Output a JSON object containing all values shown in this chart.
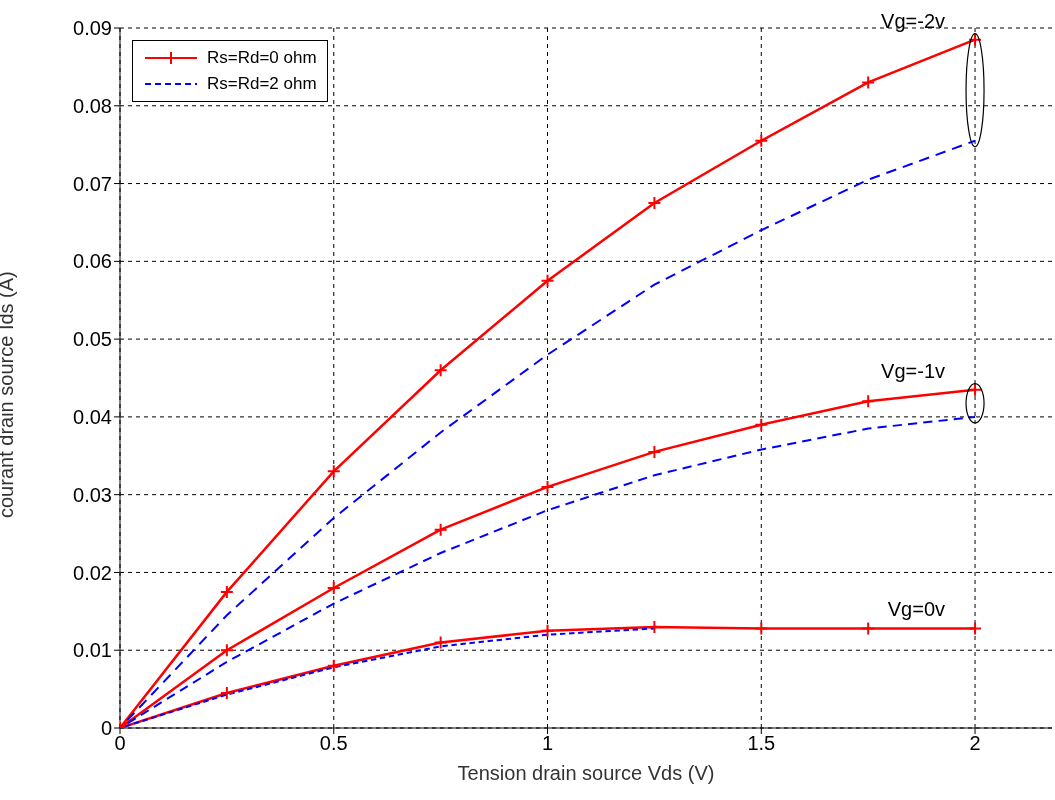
{
  "chart_data": {
    "type": "line",
    "xlabel": "Tension drain source Vds (V)",
    "ylabel": "courant drain source Ids (A)",
    "xlim": [
      0,
      2.18
    ],
    "xticks": [
      0,
      0.5,
      1,
      1.5,
      2
    ],
    "ylim": [
      0,
      0.09
    ],
    "yticks": [
      0,
      0.01,
      0.02,
      0.03,
      0.04,
      0.05,
      0.06,
      0.07,
      0.08,
      0.09
    ],
    "grid": true,
    "legend": "top left",
    "series": [
      {
        "name": "Rs=Rd=0 ohm",
        "color": "#ff0000",
        "marker": "cross",
        "line_style": "solid",
        "x": [
          0,
          0.25,
          0.5,
          0.75,
          1,
          1.25,
          1.5,
          1.75,
          2
        ],
        "values": [
          0,
          0.0175,
          0.033,
          0.046,
          0.0575,
          0.0675,
          0.0755,
          0.083,
          0.0885
        ]
      },
      {
        "name": "Rs=Rd=2 ohm",
        "color": "#0000ff",
        "marker": "none",
        "line_style": "dashed",
        "x": [
          0,
          0.25,
          0.5,
          0.75,
          1,
          1.25,
          1.5,
          1.75,
          2
        ],
        "values": [
          0,
          0.0145,
          0.027,
          0.038,
          0.048,
          0.057,
          0.064,
          0.0705,
          0.0755
        ]
      },
      {
        "color": "#ff0000",
        "marker": "cross",
        "line_style": "solid",
        "x": [
          0,
          0.25,
          0.5,
          0.75,
          1,
          1.25,
          1.5,
          1.75,
          2
        ],
        "values": [
          0,
          0.01,
          0.018,
          0.0255,
          0.031,
          0.0355,
          0.039,
          0.042,
          0.0435
        ]
      },
      {
        "color": "#0000ff",
        "marker": "none",
        "line_style": "dashed",
        "x": [
          0,
          0.25,
          0.5,
          0.75,
          1,
          1.25,
          1.5,
          1.75,
          2
        ],
        "values": [
          0,
          0.0085,
          0.016,
          0.0225,
          0.028,
          0.0325,
          0.0358,
          0.0385,
          0.04
        ]
      },
      {
        "color": "#ff0000",
        "marker": "cross",
        "line_style": "solid",
        "x": [
          0,
          0.25,
          0.5,
          0.75,
          1,
          1.25,
          1.5,
          1.75,
          2
        ],
        "values": [
          0,
          0.0045,
          0.008,
          0.011,
          0.0125,
          0.013,
          0.0128,
          0.0128,
          0.0128
        ]
      },
      {
        "color": "#0000ff",
        "marker": "none",
        "line_style": "dashed",
        "x": [
          0,
          0.25,
          0.5,
          0.75,
          1,
          1.25
        ],
        "values": [
          0,
          0.0043,
          0.0078,
          0.0105,
          0.012,
          0.0128
        ]
      }
    ],
    "annotations": [
      "Vg=-2v",
      "Vg=-1v",
      "Vg=0v"
    ]
  }
}
